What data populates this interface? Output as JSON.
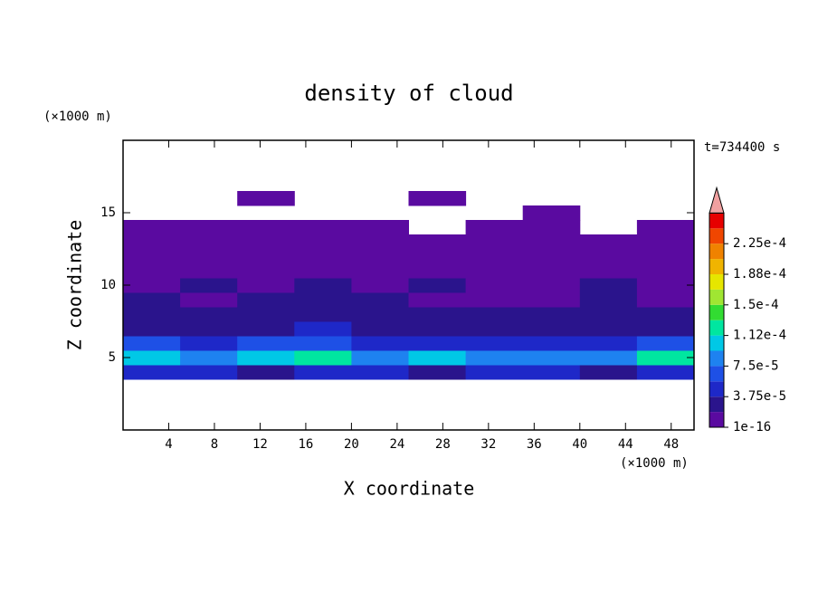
{
  "chart_data": {
    "type": "contour",
    "title": "density of cloud",
    "annotation": "t=734400 s",
    "xlabel": "X coordinate",
    "ylabel": "Z coordinate",
    "xunit": "(×1000 m)",
    "yunit": "(×1000 m)",
    "xlim": [
      0,
      50
    ],
    "ylim": [
      0,
      20
    ],
    "xticks": [
      4,
      8,
      12,
      16,
      20,
      24,
      28,
      32,
      36,
      40,
      44,
      48
    ],
    "yticks": [
      5,
      10,
      15
    ],
    "x": [
      2.5,
      7.5,
      12.5,
      17.5,
      22.5,
      27.5,
      32.5,
      37.5,
      42.5,
      47.5
    ],
    "z": [
      4,
      5,
      6,
      7,
      8,
      9,
      10,
      11,
      12,
      13,
      14,
      15,
      16,
      17
    ],
    "values": [
      [
        4e-05,
        4e-05,
        3e-05,
        4e-05,
        4e-05,
        3e-05,
        4e-05,
        4e-05,
        3e-05,
        4e-05
      ],
      [
        0.0001,
        9e-05,
        0.00011,
        0.00013,
        8e-05,
        0.0001,
        9e-05,
        8e-05,
        9e-05,
        0.00013
      ],
      [
        6e-05,
        5e-05,
        6e-05,
        7e-05,
        5e-05,
        4e-05,
        5e-05,
        4e-05,
        5e-05,
        7e-05
      ],
      [
        3e-05,
        2.5e-05,
        3e-05,
        4e-05,
        3e-05,
        3e-05,
        2.5e-05,
        2e-05,
        3e-05,
        3e-05
      ],
      [
        2.5e-05,
        2e-05,
        2e-05,
        3e-05,
        2.5e-05,
        2e-05,
        2e-05,
        2e-05,
        2.5e-05,
        2e-05
      ],
      [
        2e-05,
        1.5e-05,
        2e-05,
        2e-05,
        2e-05,
        1.5e-05,
        1e-05,
        1.5e-05,
        2e-05,
        1.5e-05
      ],
      [
        1e-05,
        2e-05,
        1e-05,
        2e-05,
        1e-05,
        2e-05,
        1e-05,
        1e-05,
        2e-05,
        1e-05
      ],
      [
        1e-05,
        1e-05,
        1e-05,
        1e-05,
        1e-05,
        1e-05,
        1e-05,
        1e-05,
        1e-05,
        1e-05
      ],
      [
        1e-05,
        1e-05,
        1e-05,
        1e-05,
        1e-05,
        1e-05,
        1e-05,
        1e-05,
        1e-05,
        1e-05
      ],
      [
        1e-05,
        1e-05,
        1e-05,
        1e-05,
        1e-05,
        1e-05,
        1e-05,
        1e-05,
        1e-05,
        1e-05
      ],
      [
        1e-05,
        1e-05,
        1e-05,
        1e-05,
        1e-05,
        null,
        1e-05,
        1e-05,
        null,
        1e-05
      ],
      [
        null,
        null,
        null,
        null,
        null,
        null,
        null,
        1e-05,
        null,
        null
      ],
      [
        null,
        null,
        1e-05,
        null,
        null,
        1e-05,
        null,
        null,
        null,
        null
      ],
      [
        null,
        null,
        null,
        null,
        null,
        null,
        null,
        null,
        null,
        null
      ]
    ],
    "levels": [
      1e-16,
      1.875e-05,
      3.75e-05,
      5.625e-05,
      7.5e-05,
      9.375e-05,
      0.0001125,
      0.00013125,
      0.00015,
      0.00016875,
      0.0001875,
      0.00020625,
      0.000225,
      0.00024375,
      0.0002625
    ],
    "colors": [
      "#5a0aa0",
      "#2a148c",
      "#1e28c8",
      "#1e50e6",
      "#1e82f0",
      "#00c8e6",
      "#00e6a0",
      "#32dc32",
      "#a0e632",
      "#e6e600",
      "#f0b400",
      "#f08200",
      "#f04600",
      "#e60000"
    ],
    "extend_color": "#f0a0a0",
    "cticks": [
      1e-16,
      {
        "value": 3.75e-05,
        "label": "3.75e-5"
      },
      {
        "value": 7.5e-05,
        "label": "7.5e-5"
      },
      {
        "value": 0.0001125,
        "label": "1.12e-4"
      },
      {
        "value": 0.00015,
        "label": "1.5e-4"
      },
      {
        "value": 0.0001875,
        "label": "1.88e-4"
      },
      {
        "value": 0.000225,
        "label": "2.25e-4"
      }
    ]
  }
}
